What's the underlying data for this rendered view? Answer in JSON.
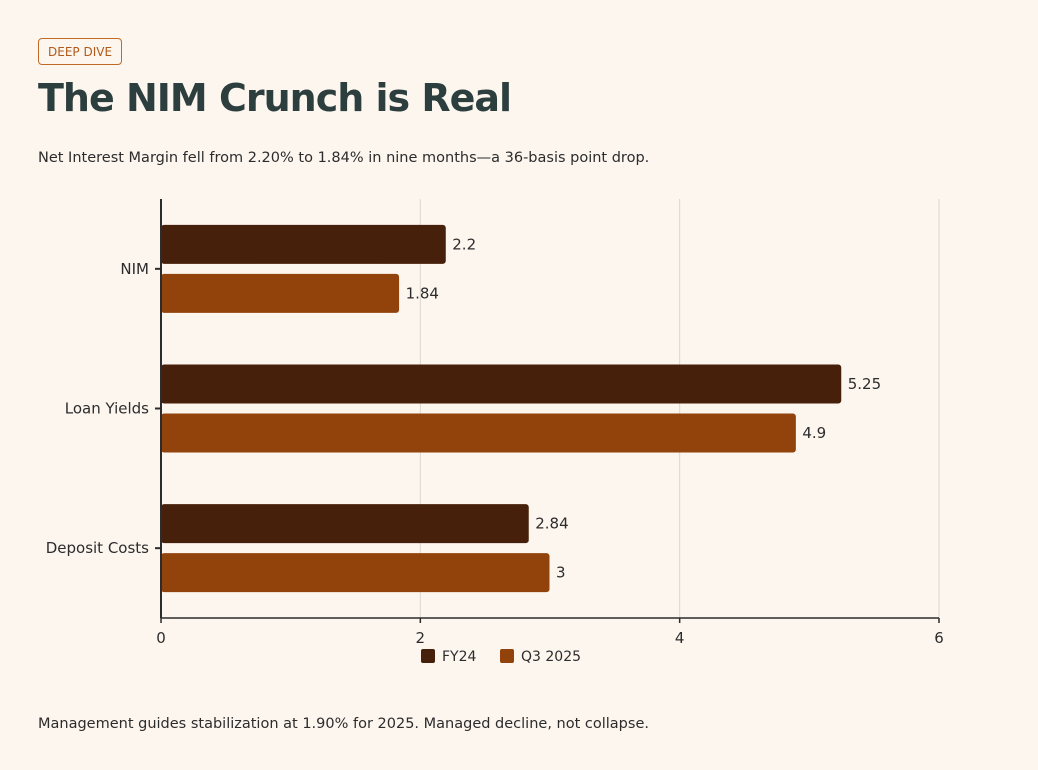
{
  "header": {
    "badge": "DEEP DIVE",
    "title": "The NIM Crunch is Real",
    "subtitle": "Net Interest Margin fell from 2.20% to 1.84% in nine months—a 36-basis point drop."
  },
  "footer": {
    "note": "Management guides stabilization at 1.90% for 2025. Managed decline, not collapse."
  },
  "colors": {
    "fy24": "#46200a",
    "q3_2025": "#92430c",
    "grid": "#dcd6cf",
    "axis": "#2c2c2c"
  },
  "chart_data": {
    "type": "bar",
    "orientation": "horizontal",
    "title": "",
    "xlabel": "",
    "ylabel": "",
    "categories": [
      "NIM",
      "Loan Yields",
      "Deposit Costs"
    ],
    "series": [
      {
        "name": "FY24",
        "values": [
          2.2,
          5.25,
          2.84
        ],
        "labels": [
          "2.2",
          "5.25",
          "2.84"
        ]
      },
      {
        "name": "Q3 2025",
        "values": [
          1.84,
          4.9,
          3
        ],
        "labels": [
          "1.84",
          "4.9",
          "3"
        ]
      }
    ],
    "xlim": [
      0,
      6
    ],
    "xticks": [
      0,
      2,
      4,
      6
    ],
    "xtick_labels": [
      "0",
      "2",
      "4",
      "6"
    ],
    "grid": true,
    "legend": "bottom-center"
  }
}
